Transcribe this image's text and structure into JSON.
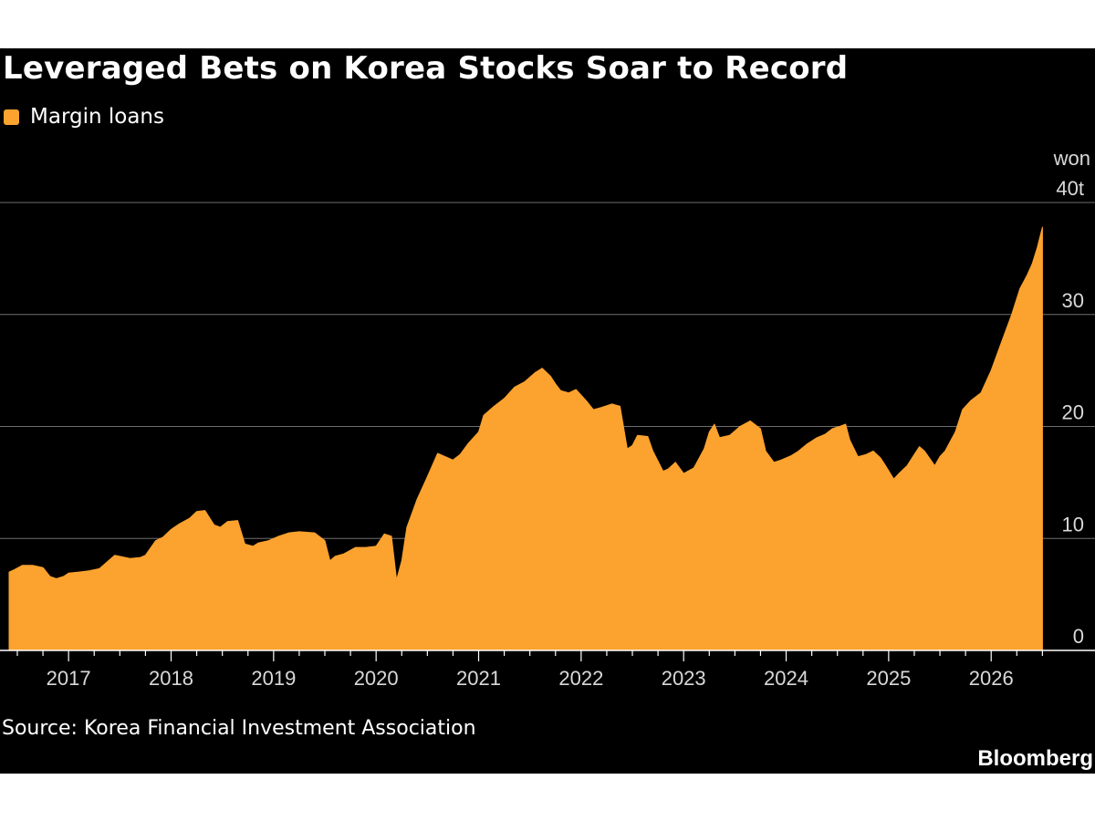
{
  "colors": {
    "background": "#000000",
    "series": "#fba22f",
    "grid": "#6e6e6e",
    "text": "#ffffff",
    "axis_text": "#d9d9d9"
  },
  "source_text": "Source: Korea Financial Investment Association",
  "brand": "Bloomberg",
  "chart_data": {
    "type": "area",
    "title": "Leveraged Bets on Korea Stocks Soar to Record",
    "legend": [
      "Margin loans"
    ],
    "legend_position": "top-left",
    "y_axis_position": "right",
    "y_unit_label": "won",
    "y_ticks": [
      0,
      10,
      20,
      30,
      40
    ],
    "y_tick_labels": [
      "0",
      "10",
      "20",
      "30",
      "40t"
    ],
    "ylim": [
      0,
      40
    ],
    "grid": true,
    "x_tick_labels": [
      "2017",
      "2018",
      "2019",
      "2020",
      "2021",
      "2022",
      "2023",
      "2024",
      "2025",
      "2026"
    ],
    "x_tick_years": [
      2017,
      2018,
      2019,
      2020,
      2021,
      2022,
      2023,
      2024,
      2025,
      2026
    ],
    "xlim": [
      2016.42,
      2026.55
    ],
    "series": [
      {
        "name": "Margin loans",
        "x": [
          2016.42,
          2016.47,
          2016.55,
          2016.65,
          2016.75,
          2016.82,
          2016.88,
          2016.95,
          2017.0,
          2017.1,
          2017.2,
          2017.3,
          2017.45,
          2017.5,
          2017.6,
          2017.7,
          2017.75,
          2017.85,
          2017.92,
          2018.0,
          2018.08,
          2018.18,
          2018.25,
          2018.33,
          2018.42,
          2018.48,
          2018.55,
          2018.65,
          2018.72,
          2018.8,
          2018.85,
          2018.95,
          2019.05,
          2019.15,
          2019.25,
          2019.4,
          2019.5,
          2019.55,
          2019.6,
          2019.68,
          2019.8,
          2019.9,
          2020.0,
          2020.08,
          2020.15,
          2020.2,
          2020.25,
          2020.3,
          2020.4,
          2020.5,
          2020.6,
          2020.75,
          2020.82,
          2020.9,
          2021.0,
          2021.05,
          2021.15,
          2021.25,
          2021.35,
          2021.45,
          2021.55,
          2021.62,
          2021.7,
          2021.75,
          2021.8,
          2021.88,
          2021.95,
          2022.05,
          2022.12,
          2022.2,
          2022.3,
          2022.38,
          2022.45,
          2022.5,
          2022.55,
          2022.65,
          2022.7,
          2022.8,
          2022.85,
          2022.92,
          2023.0,
          2023.1,
          2023.2,
          2023.25,
          2023.3,
          2023.35,
          2023.45,
          2023.55,
          2023.65,
          2023.75,
          2023.8,
          2023.88,
          2023.95,
          2024.05,
          2024.12,
          2024.2,
          2024.3,
          2024.38,
          2024.45,
          2024.52,
          2024.58,
          2024.62,
          2024.7,
          2024.78,
          2024.85,
          2024.92,
          2024.97,
          2025.05,
          2025.1,
          2025.18,
          2025.25,
          2025.3,
          2025.35,
          2025.45,
          2025.5,
          2025.55,
          2025.65,
          2025.72,
          2025.8,
          2025.9,
          2026.0,
          2026.1,
          2026.2,
          2026.28,
          2026.35,
          2026.4,
          2026.45,
          2026.5
        ],
        "values": [
          7.0,
          7.2,
          7.6,
          7.6,
          7.4,
          6.6,
          6.4,
          6.6,
          6.9,
          7.0,
          7.1,
          7.3,
          8.5,
          8.4,
          8.2,
          8.3,
          8.5,
          9.8,
          10.1,
          10.8,
          11.3,
          11.8,
          12.4,
          12.5,
          11.2,
          11.0,
          11.5,
          11.6,
          9.5,
          9.3,
          9.6,
          9.8,
          10.2,
          10.5,
          10.6,
          10.5,
          9.8,
          8.0,
          8.4,
          8.6,
          9.2,
          9.2,
          9.3,
          10.4,
          10.2,
          6.3,
          8.0,
          11.0,
          13.5,
          15.5,
          17.6,
          17.0,
          17.5,
          18.5,
          19.5,
          21.0,
          21.8,
          22.5,
          23.5,
          24.0,
          24.8,
          25.2,
          24.5,
          23.8,
          23.2,
          23.0,
          23.3,
          22.3,
          21.5,
          21.7,
          22.0,
          21.8,
          18.0,
          18.3,
          19.2,
          19.1,
          17.8,
          16.0,
          16.2,
          16.8,
          15.8,
          16.3,
          18.0,
          19.5,
          20.2,
          19.0,
          19.2,
          20.0,
          20.5,
          19.8,
          17.8,
          16.8,
          17.0,
          17.4,
          17.8,
          18.4,
          19.0,
          19.3,
          19.8,
          20.0,
          20.2,
          18.8,
          17.3,
          17.5,
          17.8,
          17.2,
          16.5,
          15.3,
          15.8,
          16.5,
          17.5,
          18.2,
          17.8,
          16.5,
          17.3,
          17.8,
          19.5,
          21.5,
          22.3,
          23.0,
          25.0,
          27.5,
          30.0,
          32.3,
          33.5,
          34.5,
          36.0,
          37.8
        ]
      }
    ]
  }
}
